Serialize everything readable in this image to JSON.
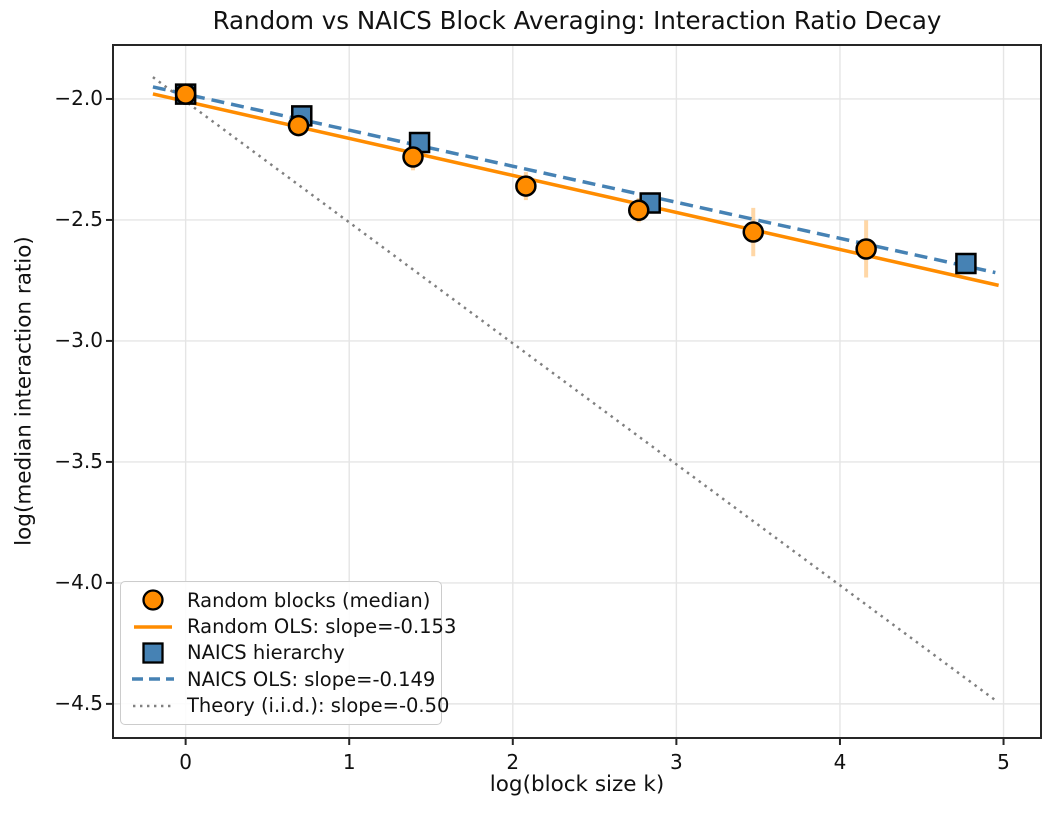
{
  "figure": {
    "title": "Random vs NAICS Block Averaging: Interaction Ratio Decay",
    "xlabel": "log(block size k)",
    "ylabel": "log(median interaction ratio)"
  },
  "colors": {
    "orange": "#ff8c00",
    "orange_errorbar": "rgba(255,140,0,0.35)",
    "steel_blue": "#4682b4",
    "theory_gray": "#808080",
    "grid": "#e5e5e5",
    "spine": "#262626",
    "text": "#111111",
    "legend_border": "#cccccc"
  },
  "chart_data": {
    "type": "scatter",
    "title": "Random vs NAICS Block Averaging: Interaction Ratio Decay",
    "xlabel": "log(block size k)",
    "ylabel": "log(median interaction ratio)",
    "xlim": [
      -0.444,
      5.229
    ],
    "ylim": [
      -4.641,
      -1.777
    ],
    "grid": true,
    "legend_position": "lower left",
    "xticks": {
      "values": [
        0,
        1,
        2,
        3,
        4,
        5
      ],
      "labels": [
        "0",
        "1",
        "2",
        "3",
        "4",
        "5"
      ]
    },
    "yticks": {
      "values": [
        -2.0,
        -2.5,
        -3.0,
        -3.5,
        -4.0,
        -4.5
      ],
      "labels": [
        "−2.0",
        "−2.5",
        "−3.0",
        "−3.5",
        "−4.0",
        "−4.5"
      ]
    },
    "series": [
      {
        "name": "Random blocks (median)",
        "kind": "scatter",
        "marker": "circle",
        "color": "#ff8c00",
        "edge_color": "#000000",
        "x": [
          0.0,
          0.69,
          1.39,
          2.08,
          2.77,
          3.47,
          4.16
        ],
        "y": [
          -1.98,
          -2.11,
          -2.24,
          -2.36,
          -2.46,
          -2.55,
          -2.62
        ],
        "yerr": [
          0.025,
          0.03,
          0.055,
          0.058,
          0.05,
          0.1,
          0.118
        ],
        "err_color": "rgba(255,140,0,0.35)"
      },
      {
        "name": "Random OLS: slope=-0.153",
        "kind": "line",
        "style": "solid",
        "color": "#ff8c00",
        "slope": -0.153,
        "intercept": -2.01,
        "x_range": [
          -0.2,
          4.97
        ]
      },
      {
        "name": "NAICS hierarchy",
        "kind": "scatter",
        "marker": "square",
        "color": "#4682b4",
        "edge_color": "#000000",
        "x": [
          0.0,
          0.71,
          1.43,
          2.84,
          4.77
        ],
        "y": [
          -1.98,
          -2.07,
          -2.18,
          -2.43,
          -2.68
        ],
        "yerr": null
      },
      {
        "name": "NAICS OLS: slope=-0.149",
        "kind": "line",
        "style": "dashed",
        "color": "#4682b4",
        "slope": -0.149,
        "intercept": -1.98,
        "x_range": [
          -0.2,
          4.95
        ]
      },
      {
        "name": "Theory (i.i.d.): slope=-0.50",
        "kind": "line",
        "style": "dotted",
        "color": "#808080",
        "slope": -0.5,
        "intercept": -2.01,
        "x_range": [
          -0.2,
          4.96
        ]
      }
    ]
  }
}
